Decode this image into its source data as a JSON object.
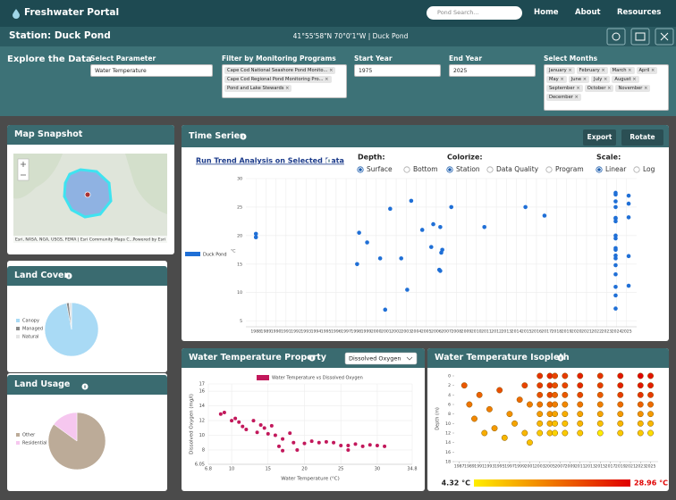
{
  "nav": {
    "title": "Freshwater Portal",
    "search_placeholder": "Pond Search...",
    "links": [
      "Home",
      "About",
      "Resources"
    ]
  },
  "station": {
    "title": "Station: Duck Pond",
    "location": "41°55'58\"N 70°0'1\"W | Duck Pond"
  },
  "explore": {
    "title": "Explore the Data",
    "parameter": {
      "label": "Select Parameter",
      "value": "Water Temperature"
    },
    "programs": {
      "label": "Filter by Monitoring Programs",
      "chips": [
        "Cape Cod National Seashore Pond Monito...",
        "Cape Cod Regional Pond Monitoring Pro...",
        "Pond and Lake Stewards"
      ]
    },
    "start_year": {
      "label": "Start Year",
      "value": 1975
    },
    "end_year": {
      "label": "End Year",
      "value": 2025
    },
    "months": {
      "label": "Select Months",
      "chips": [
        "January",
        "February",
        "March",
        "April",
        "May",
        "June",
        "July",
        "August",
        "September",
        "October",
        "November",
        "December"
      ]
    }
  },
  "map": {
    "title": "Map Snapshot",
    "attribution": "Esri, NASA, NGA, USGS, FEMA | Esri Community Maps C...",
    "powered": "Powered by Esri"
  },
  "chart_data": [
    {
      "type": "scatter",
      "title": "Time Series",
      "buttons": [
        "Export",
        "Rotate"
      ],
      "trend_link": "Run Trend Analysis on Selected Data",
      "controls": [
        {
          "label": "Depth:",
          "options": [
            "Surface",
            "Bottom"
          ],
          "selected": 0
        },
        {
          "label": "Colorize:",
          "options": [
            "Station",
            "Data Quality",
            "Program"
          ],
          "selected": 0
        },
        {
          "label": "Scale:",
          "options": [
            "Linear",
            "Log"
          ],
          "selected": 0
        }
      ],
      "log_scale": false,
      "grid": true,
      "y_label": "°C",
      "xlim": [
        1987,
        2026
      ],
      "xticks": [
        1988,
        1989,
        1990,
        1991,
        1992,
        1993,
        1994,
        1995,
        1996,
        1997,
        1998,
        1999,
        2000,
        2001,
        2002,
        2003,
        2004,
        2005,
        2006,
        2007,
        2008,
        2009,
        2010,
        2011,
        2012,
        2013,
        2014,
        2015,
        2016,
        2017,
        2018,
        2019,
        2020,
        2021,
        2022,
        2023,
        2024,
        2025
      ],
      "ylim": [
        4,
        30
      ],
      "yticks": [
        5,
        10,
        15,
        20,
        25,
        30
      ],
      "series": [
        {
          "name": "Duck Pond",
          "color": "#1f6fd6",
          "x": [
            1988,
            1988,
            1998.1,
            1998.3,
            1999.1,
            2000.4,
            2000.9,
            2001.4,
            2002.5,
            2003.1,
            2003.5,
            2004.6,
            2005.7,
            2005.5,
            2006.4,
            2006.6,
            2006.5,
            2006.3,
            2006.4,
            2007.5,
            2010.8,
            2014.9,
            2016.8,
            2023.9,
            2023.9,
            2023.9,
            2023.9,
            2023.9,
            2023.9,
            2023.9,
            2023.9,
            2023.9,
            2023.9,
            2023.9,
            2023.9,
            2023.9,
            2023.9,
            2023.9,
            2023.9,
            2023.9,
            2023.9,
            2025.2,
            2025.2,
            2025.2,
            2025.2,
            2025.2
          ],
          "values": [
            20.3,
            19.7,
            15.0,
            20.5,
            18.8,
            16.0,
            7.0,
            24.7,
            16.0,
            10.5,
            26.1,
            21.0,
            22.0,
            18.0,
            21.5,
            17.5,
            17.0,
            14.0,
            13.8,
            25.0,
            21.5,
            25.0,
            23.5,
            27.5,
            27.2,
            26.0,
            25.0,
            23.1,
            23.0,
            22.5,
            20.0,
            19.5,
            17.8,
            17.5,
            16.5,
            16.0,
            14.8,
            13.2,
            11.0,
            9.5,
            7.2,
            27.0,
            25.6,
            23.2,
            16.4,
            11.2
          ]
        }
      ]
    },
    {
      "type": "scatter",
      "title": "Water Temperature Property",
      "dropdown": "Dissolved Oxygen",
      "x_label": "Water Temperature (°C)",
      "y_label": "Dissolved Oxygen (mg/l)",
      "grid": true,
      "xlim": [
        6.8,
        34.8
      ],
      "xticks": [
        6.8,
        10,
        15,
        20,
        25,
        30,
        34.8
      ],
      "ylim": [
        6.05,
        17
      ],
      "yticks": [
        6.05,
        8,
        10,
        12,
        14,
        16,
        17
      ],
      "series": [
        {
          "name": "Water Temperature vs Dissolved Oxygen",
          "color": "#c2185b",
          "x": [
            8.5,
            9,
            10,
            10.5,
            11,
            11.5,
            12,
            13,
            13.5,
            14,
            14.5,
            15,
            15.5,
            16,
            16.5,
            17,
            17,
            18,
            18.5,
            19,
            20,
            21,
            22,
            23,
            24,
            25,
            26,
            26,
            27,
            28,
            29,
            30,
            31
          ],
          "values": [
            12.9,
            13.1,
            12.0,
            12.3,
            11.8,
            11.2,
            10.8,
            12.0,
            10.4,
            11.4,
            11.0,
            10.2,
            11.3,
            10.0,
            8.5,
            9.5,
            7.9,
            10.3,
            9.0,
            8.0,
            8.9,
            9.2,
            9.0,
            9.1,
            9.0,
            8.6,
            8.6,
            8.0,
            8.8,
            8.5,
            8.7,
            8.6,
            8.5
          ]
        }
      ]
    },
    {
      "type": "isopleth",
      "title": "Water Temperature Isopleth",
      "y_label": "Depth (m)",
      "xlim": [
        1986,
        2026.5
      ],
      "xticks": [
        1987,
        1989,
        1991,
        1993,
        1995,
        1997,
        1999,
        2001,
        2003,
        2005,
        2007,
        2009,
        2011,
        2013,
        2015,
        2017,
        2019,
        2021,
        2023,
        2025
      ],
      "ylim": [
        0,
        18
      ],
      "yticks": [
        0,
        2,
        4,
        6,
        8,
        10,
        12,
        14,
        16,
        18
      ],
      "y_inverted": true,
      "colors": [
        "#ffee00",
        "#e00000"
      ],
      "colorbar": [
        {
          "value": 4.32,
          "label": "4.32 °C"
        },
        {
          "value": 28.96,
          "label": "28.96 °C"
        }
      ],
      "points": [
        [
          1988,
          2,
          20
        ],
        [
          1989,
          6,
          17
        ],
        [
          1990,
          9,
          15
        ],
        [
          1991,
          4,
          19
        ],
        [
          1992,
          12,
          11
        ],
        [
          1993,
          7,
          16
        ],
        [
          1994,
          11,
          13
        ],
        [
          1995,
          3,
          21
        ],
        [
          1996,
          13,
          10
        ],
        [
          1997,
          8,
          14
        ],
        [
          1998,
          10,
          12
        ],
        [
          1999,
          5,
          18
        ],
        [
          2000,
          12,
          10
        ],
        [
          2000,
          2,
          22
        ],
        [
          2001,
          6,
          16
        ],
        [
          2001,
          14,
          9
        ],
        [
          2003,
          0,
          24
        ],
        [
          2003,
          2,
          23
        ],
        [
          2003,
          4,
          21
        ],
        [
          2003,
          6,
          17
        ],
        [
          2003,
          8,
          13
        ],
        [
          2003,
          10,
          10
        ],
        [
          2003,
          12,
          8
        ],
        [
          2005,
          0,
          25
        ],
        [
          2005,
          2,
          24
        ],
        [
          2005,
          4,
          22
        ],
        [
          2005,
          6,
          18
        ],
        [
          2005,
          8,
          14
        ],
        [
          2005,
          10,
          11
        ],
        [
          2005,
          12,
          9
        ],
        [
          2006,
          0,
          22
        ],
        [
          2006,
          2,
          21
        ],
        [
          2006,
          4,
          19
        ],
        [
          2006,
          6,
          16
        ],
        [
          2006,
          8,
          12
        ],
        [
          2006,
          10,
          9
        ],
        [
          2006,
          12,
          7
        ],
        [
          2008,
          0,
          23
        ],
        [
          2008,
          2,
          22
        ],
        [
          2008,
          4,
          20
        ],
        [
          2008,
          6,
          15
        ],
        [
          2008,
          8,
          11
        ],
        [
          2008,
          10,
          9
        ],
        [
          2008,
          12,
          8
        ],
        [
          2011,
          0,
          26
        ],
        [
          2011,
          2,
          25
        ],
        [
          2011,
          4,
          22
        ],
        [
          2011,
          6,
          17
        ],
        [
          2011,
          8,
          12
        ],
        [
          2011,
          10,
          10
        ],
        [
          2011,
          12,
          8
        ],
        [
          2015,
          0,
          24
        ],
        [
          2015,
          2,
          23
        ],
        [
          2015,
          4,
          20
        ],
        [
          2015,
          6,
          16
        ],
        [
          2015,
          8,
          12
        ],
        [
          2015,
          10,
          9
        ],
        [
          2015,
          12,
          4.32
        ],
        [
          2019,
          0,
          27
        ],
        [
          2019,
          2,
          26
        ],
        [
          2019,
          4,
          23
        ],
        [
          2019,
          6,
          18
        ],
        [
          2019,
          8,
          13
        ],
        [
          2019,
          10,
          10
        ],
        [
          2019,
          12,
          8
        ],
        [
          2023,
          0,
          28.96
        ],
        [
          2023,
          2,
          27
        ],
        [
          2023,
          4,
          24
        ],
        [
          2023,
          6,
          19
        ],
        [
          2023,
          8,
          14
        ],
        [
          2023,
          10,
          10
        ],
        [
          2023,
          12,
          8
        ],
        [
          2025,
          0,
          27
        ],
        [
          2025,
          2,
          26
        ],
        [
          2025,
          4,
          23
        ],
        [
          2025,
          6,
          18
        ],
        [
          2025,
          8,
          13
        ],
        [
          2025,
          10,
          10
        ],
        [
          2025,
          12,
          6
        ]
      ]
    },
    {
      "type": "pie",
      "title": "Land Cover",
      "categories": [
        "Canopy",
        "Managed",
        "Natural"
      ],
      "values": [
        97,
        1.5,
        1.5
      ],
      "colors": [
        "#a9daf5",
        "#8a8a8a",
        "#e4e4e4"
      ]
    },
    {
      "type": "pie",
      "title": "Land Usage",
      "categories": [
        "Other",
        "Residential"
      ],
      "values": [
        85,
        15
      ],
      "colors": [
        "#bcab98",
        "#f6c7ef"
      ]
    }
  ]
}
